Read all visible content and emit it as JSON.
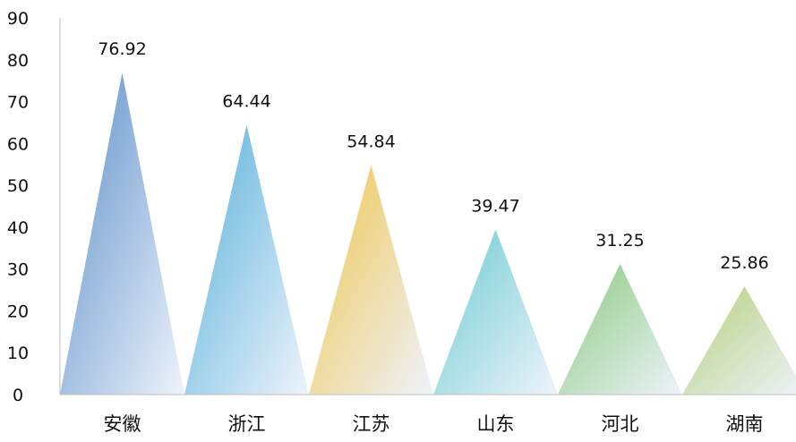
{
  "chart_data": {
    "type": "bar",
    "bar_shape": "triangle",
    "categories": [
      "安徽",
      "浙江",
      "江苏",
      "山东",
      "河北",
      "湖南"
    ],
    "values": [
      76.92,
      64.44,
      54.84,
      39.47,
      31.25,
      25.86
    ],
    "value_labels": [
      "76.92",
      "64.44",
      "54.84",
      "39.47",
      "31.25",
      "25.86"
    ],
    "y_ticks": [
      "0",
      "10",
      "20",
      "30",
      "40",
      "50",
      "60",
      "70",
      "80",
      "90"
    ],
    "ylim": [
      0,
      90
    ],
    "title": "",
    "xlabel": "",
    "ylabel": "",
    "grid": false,
    "legend": "none",
    "colors": [
      "#5b8ec8",
      "#55b0da",
      "#f0c64e",
      "#6ccbd2",
      "#8ac97e",
      "#b5cf7c"
    ]
  }
}
